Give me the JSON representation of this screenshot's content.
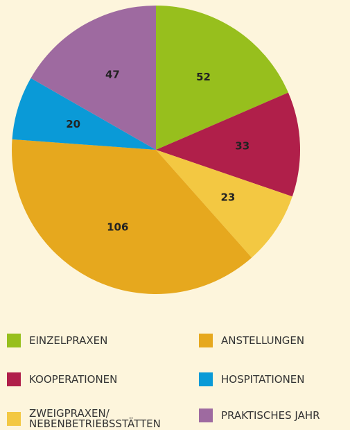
{
  "chart_data": {
    "type": "pie",
    "categories": [
      "EINZELPRAXEN",
      "KOOPERATIONEN",
      "ZWEIGPRAXEN/\nNEBENBETRIEBSSTÄTTEN",
      "ANSTELLUNGEN",
      "HOSPITATIONEN",
      "PRAKTISCHES JAHR"
    ],
    "values": [
      52,
      33,
      23,
      106,
      20,
      47
    ],
    "colors": [
      "#97bf1d",
      "#b01f4a",
      "#f3c842",
      "#e6a81e",
      "#0a9ad7",
      "#9e6aa0"
    ]
  }
}
